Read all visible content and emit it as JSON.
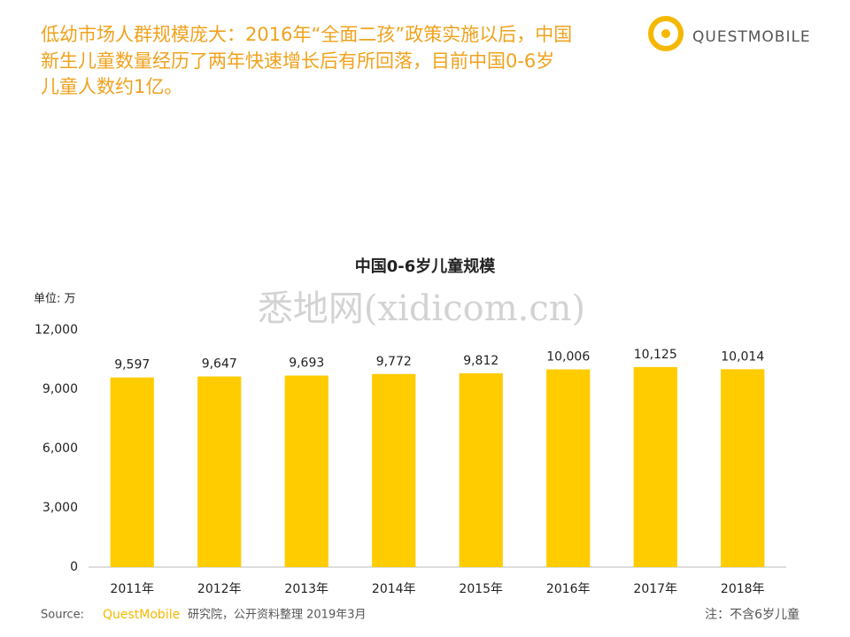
{
  "header": {
    "lines": [
      "低幼市场人群规模庞大：2016年“全面二孩”政策实施以后，中国",
      "新生儿童数量经历了两年快速增长后有所回落，目前中国0-6岁",
      "儿童人数约1亿。"
    ]
  },
  "logo": {
    "text": "QUESTMOBILE"
  },
  "watermark": "悉地网(xidicom.cn)",
  "source": {
    "label": "Source:",
    "brand": "QuestMobile",
    "text": "研究院，公开资料整理 2019年3月"
  },
  "note": "注：不含6岁儿童",
  "chart_data": {
    "type": "bar",
    "title": "中国0-6岁儿童规模",
    "y_label": "单位: 万",
    "categories": [
      "2011年",
      "2012年",
      "2013年",
      "2014年",
      "2015年",
      "2016年",
      "2017年",
      "2018年"
    ],
    "values": [
      9597,
      9647,
      9693,
      9772,
      9812,
      10006,
      10125,
      10014
    ],
    "value_labels": [
      "9,597",
      "9,647",
      "9,693",
      "9,772",
      "9,812",
      "10,006",
      "10,125",
      "10,014"
    ],
    "color": "#ffcc00",
    "ylim": [
      0,
      12000
    ],
    "yticks": [
      0,
      {
        "value": 3000,
        "label": "3,000"
      },
      {
        "value": 6000,
        "label": "6,000"
      },
      {
        "value": 9000,
        "label": "9,000"
      },
      {
        "value": 12000,
        "label": "12,000"
      }
    ],
    "grid": false
  }
}
